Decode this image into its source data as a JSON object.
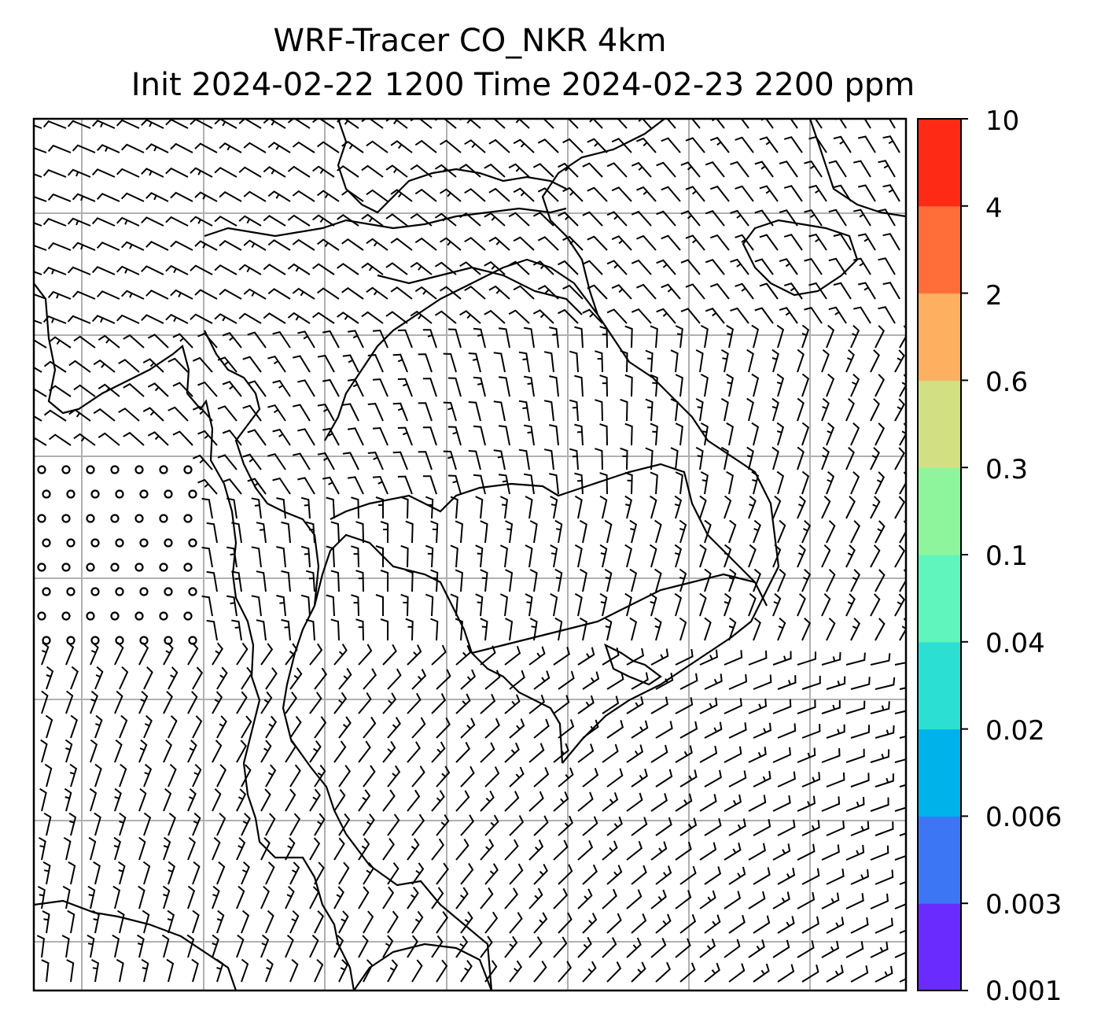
{
  "title": {
    "line1": "WRF-Tracer CO_NKR 4km",
    "line2": "Init 2024-02-22 1200 Time 2024-02-23 2200 ppm"
  },
  "colorbar": {
    "levels": [
      "0.001",
      "0.003",
      "0.006",
      "0.02",
      "0.04",
      "0.1",
      "0.3",
      "0.6",
      "2",
      "4",
      "10"
    ],
    "colors": [
      "#6a2bff",
      "#3d76f5",
      "#00b2ea",
      "#2be0d2",
      "#5ff5bd",
      "#8ef59c",
      "#d2df83",
      "#feb060",
      "#ff6e39",
      "#ff2a16"
    ]
  },
  "map": {
    "barb_color": "#000000",
    "coastline_color": "#000000",
    "gridline_color": "#b0b0b0",
    "tracer_field": "empty (all values below 0.001 ppm)"
  }
}
